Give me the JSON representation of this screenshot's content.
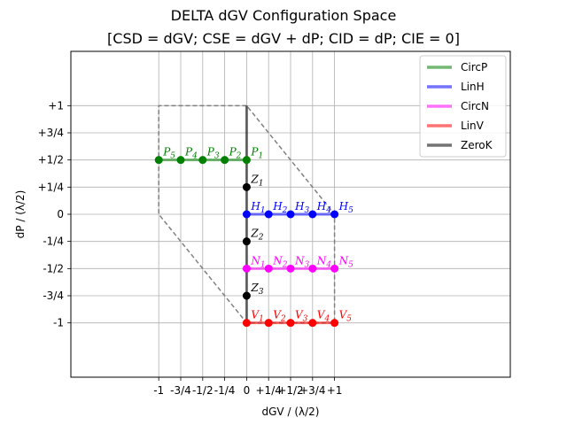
{
  "chart_data": {
    "type": "line",
    "title": "DELTA dGV Configuration Space",
    "subtitle": "[CSD = dGV; CSE = dGV + dP; CID = dP; CIE = 0]",
    "xlabel": "dGV / (λ/2)",
    "ylabel": "dP / (λ/2)",
    "xlim": [
      -2,
      3
    ],
    "ylim": [
      -1.5,
      1.5
    ],
    "grid": true,
    "legend_position": "top-right",
    "x_ticks": [
      {
        "value": -1,
        "label": "-1"
      },
      {
        "value": -0.75,
        "label": "-3/4"
      },
      {
        "value": -0.5,
        "label": "-1/2"
      },
      {
        "value": -0.25,
        "label": "-1/4"
      },
      {
        "value": 0,
        "label": "0"
      },
      {
        "value": 0.25,
        "label": "+1/4"
      },
      {
        "value": 0.5,
        "label": "+1/2"
      },
      {
        "value": 0.75,
        "label": "+3/4"
      },
      {
        "value": 1,
        "label": "+1"
      }
    ],
    "y_ticks": [
      {
        "value": 1,
        "label": "+1"
      },
      {
        "value": 0.75,
        "label": "+3/4"
      },
      {
        "value": 0.5,
        "label": "+1/2"
      },
      {
        "value": 0.25,
        "label": "+1/4"
      },
      {
        "value": 0,
        "label": "0"
      },
      {
        "value": -0.25,
        "label": "-1/4"
      },
      {
        "value": -0.5,
        "label": "-1/2"
      },
      {
        "value": -0.75,
        "label": "-3/4"
      },
      {
        "value": -1,
        "label": "-1"
      }
    ],
    "boundary": {
      "color": "#808080",
      "style": "dashed",
      "points": [
        [
          0,
          1
        ],
        [
          -1,
          1
        ],
        [
          -1,
          0
        ],
        [
          0,
          -1
        ],
        [
          1,
          -1
        ],
        [
          1,
          0
        ],
        [
          0,
          1
        ]
      ]
    },
    "series": [
      {
        "name": "CircP",
        "color": "#008000",
        "points": [
          {
            "x": 0,
            "y": 0.5,
            "label": "P",
            "sub": "1"
          },
          {
            "x": -0.25,
            "y": 0.5,
            "label": "P",
            "sub": "2"
          },
          {
            "x": -0.5,
            "y": 0.5,
            "label": "P",
            "sub": "3"
          },
          {
            "x": -0.75,
            "y": 0.5,
            "label": "P",
            "sub": "4"
          },
          {
            "x": -1,
            "y": 0.5,
            "label": "P",
            "sub": "5"
          }
        ]
      },
      {
        "name": "LinH",
        "color": "#0000ff",
        "points": [
          {
            "x": 0,
            "y": 0,
            "label": "H",
            "sub": "1"
          },
          {
            "x": 0.25,
            "y": 0,
            "label": "H",
            "sub": "2"
          },
          {
            "x": 0.5,
            "y": 0,
            "label": "H",
            "sub": "3"
          },
          {
            "x": 0.75,
            "y": 0,
            "label": "H",
            "sub": "4"
          },
          {
            "x": 1,
            "y": 0,
            "label": "H",
            "sub": "5"
          }
        ]
      },
      {
        "name": "CircN",
        "color": "#ff00ff",
        "points": [
          {
            "x": 0,
            "y": -0.5,
            "label": "N",
            "sub": "1"
          },
          {
            "x": 0.25,
            "y": -0.5,
            "label": "N",
            "sub": "2"
          },
          {
            "x": 0.5,
            "y": -0.5,
            "label": "N",
            "sub": "3"
          },
          {
            "x": 0.75,
            "y": -0.5,
            "label": "N",
            "sub": "4"
          },
          {
            "x": 1,
            "y": -0.5,
            "label": "N",
            "sub": "5"
          }
        ]
      },
      {
        "name": "LinV",
        "color": "#ff0000",
        "points": [
          {
            "x": 0,
            "y": -1,
            "label": "V",
            "sub": "1"
          },
          {
            "x": 0.25,
            "y": -1,
            "label": "V",
            "sub": "2"
          },
          {
            "x": 0.5,
            "y": -1,
            "label": "V",
            "sub": "3"
          },
          {
            "x": 0.75,
            "y": -1,
            "label": "V",
            "sub": "4"
          },
          {
            "x": 1,
            "y": -1,
            "label": "V",
            "sub": "5"
          }
        ]
      },
      {
        "name": "ZeroK",
        "color": "#000000",
        "line_y_range": [
          -1,
          1
        ],
        "points": [
          {
            "x": 0,
            "y": 0.25,
            "label": "Z",
            "sub": "1"
          },
          {
            "x": 0,
            "y": -0.25,
            "label": "Z",
            "sub": "2"
          },
          {
            "x": 0,
            "y": -0.75,
            "label": "Z",
            "sub": "3"
          }
        ]
      }
    ]
  }
}
